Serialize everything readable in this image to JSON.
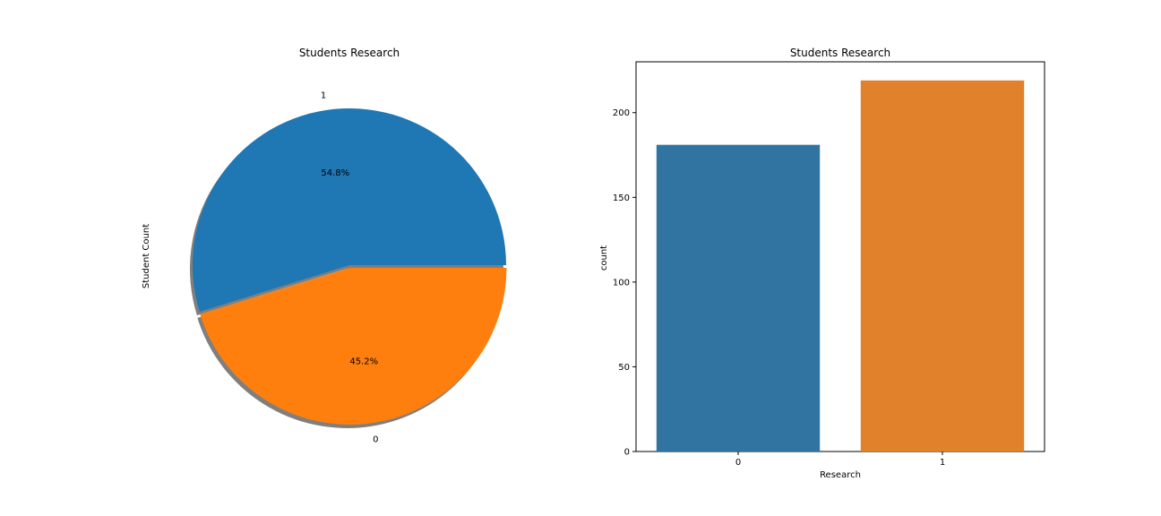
{
  "chart_data": [
    {
      "type": "pie",
      "title": "Students Research",
      "ylabel": "Student Count",
      "categories": [
        "1",
        "0"
      ],
      "values": [
        54.8,
        45.2
      ],
      "percent_labels": [
        "54.8%",
        "45.2%"
      ],
      "colors": [
        "#1f77b4",
        "#ff7f0e"
      ],
      "explode": [
        0,
        0.1
      ],
      "shadow": true
    },
    {
      "type": "bar",
      "title": "Students Research",
      "xlabel": "Research",
      "ylabel": "count",
      "categories": [
        "0",
        "1"
      ],
      "values": [
        181,
        219
      ],
      "colors": [
        "#3274a1",
        "#e1812c"
      ],
      "ylim": [
        0,
        230
      ],
      "y_ticks": [
        0,
        50,
        100,
        150,
        200
      ],
      "grid": false
    }
  ]
}
